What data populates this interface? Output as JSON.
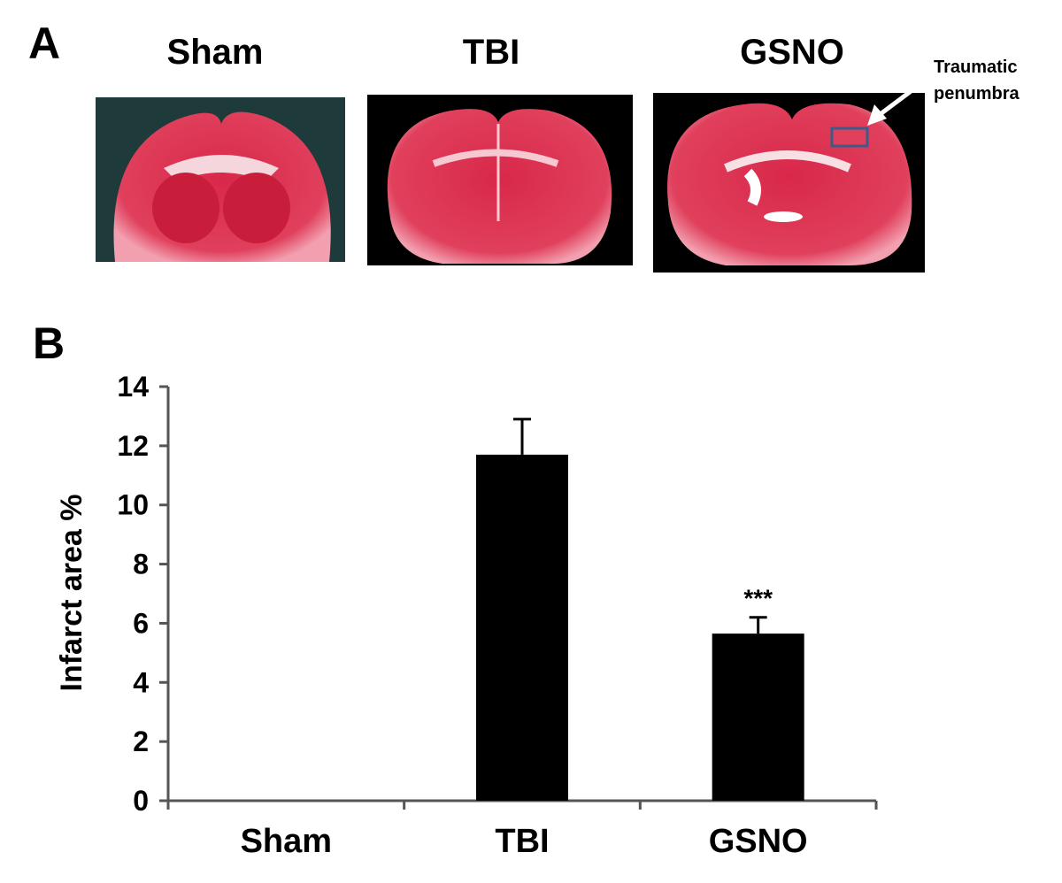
{
  "panel_a": {
    "label": "A",
    "image_titles": [
      "Sham",
      "TBI",
      "GSNO"
    ],
    "annotation": [
      "Traumatic",
      "penumbra"
    ]
  },
  "panel_b": {
    "label": "B"
  },
  "chart_data": {
    "type": "bar",
    "categories": [
      "Sham",
      "TBI",
      "GSNO"
    ],
    "values": [
      0,
      11.7,
      5.65
    ],
    "errors": [
      null,
      1.2,
      0.55
    ],
    "significance": [
      null,
      null,
      "***"
    ],
    "color": "#000000",
    "ylabel": "Infarct area %",
    "ylim": [
      0,
      14
    ],
    "yticks": [
      0,
      2,
      4,
      6,
      8,
      10,
      12,
      14
    ],
    "grid": false
  }
}
